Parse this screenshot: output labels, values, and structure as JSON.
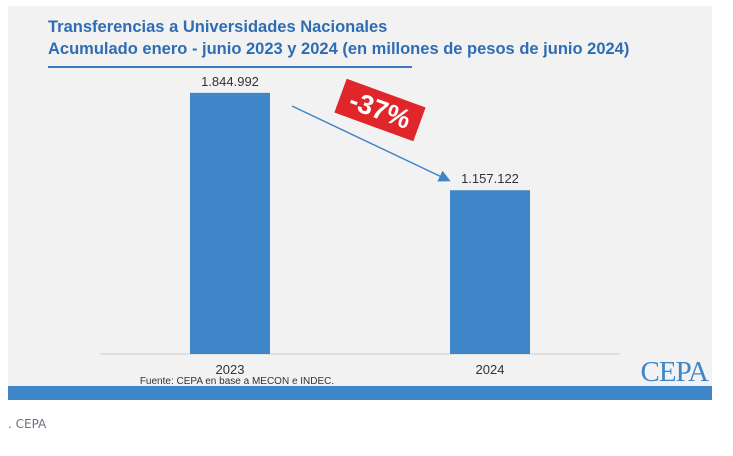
{
  "chart_data": {
    "type": "bar",
    "title": "Transferencias a Universidades Nacionales",
    "subtitle": "Acumulado enero - junio 2023 y 2024 (en millones de pesos de junio 2024)",
    "categories": [
      "2023",
      "2024"
    ],
    "values": [
      1844992,
      1157122
    ],
    "value_labels": [
      "1.844.992",
      "1.157.122"
    ],
    "ylim": [
      0,
      1950000
    ],
    "grid": false,
    "bar_color": "#3f86c9",
    "annotation": {
      "text": "-37%",
      "color": "#e0262b"
    },
    "source": "Fuente: CEPA en base a MECON e INDEC."
  },
  "logo_text": "CEPA",
  "caption": ". CEPA"
}
